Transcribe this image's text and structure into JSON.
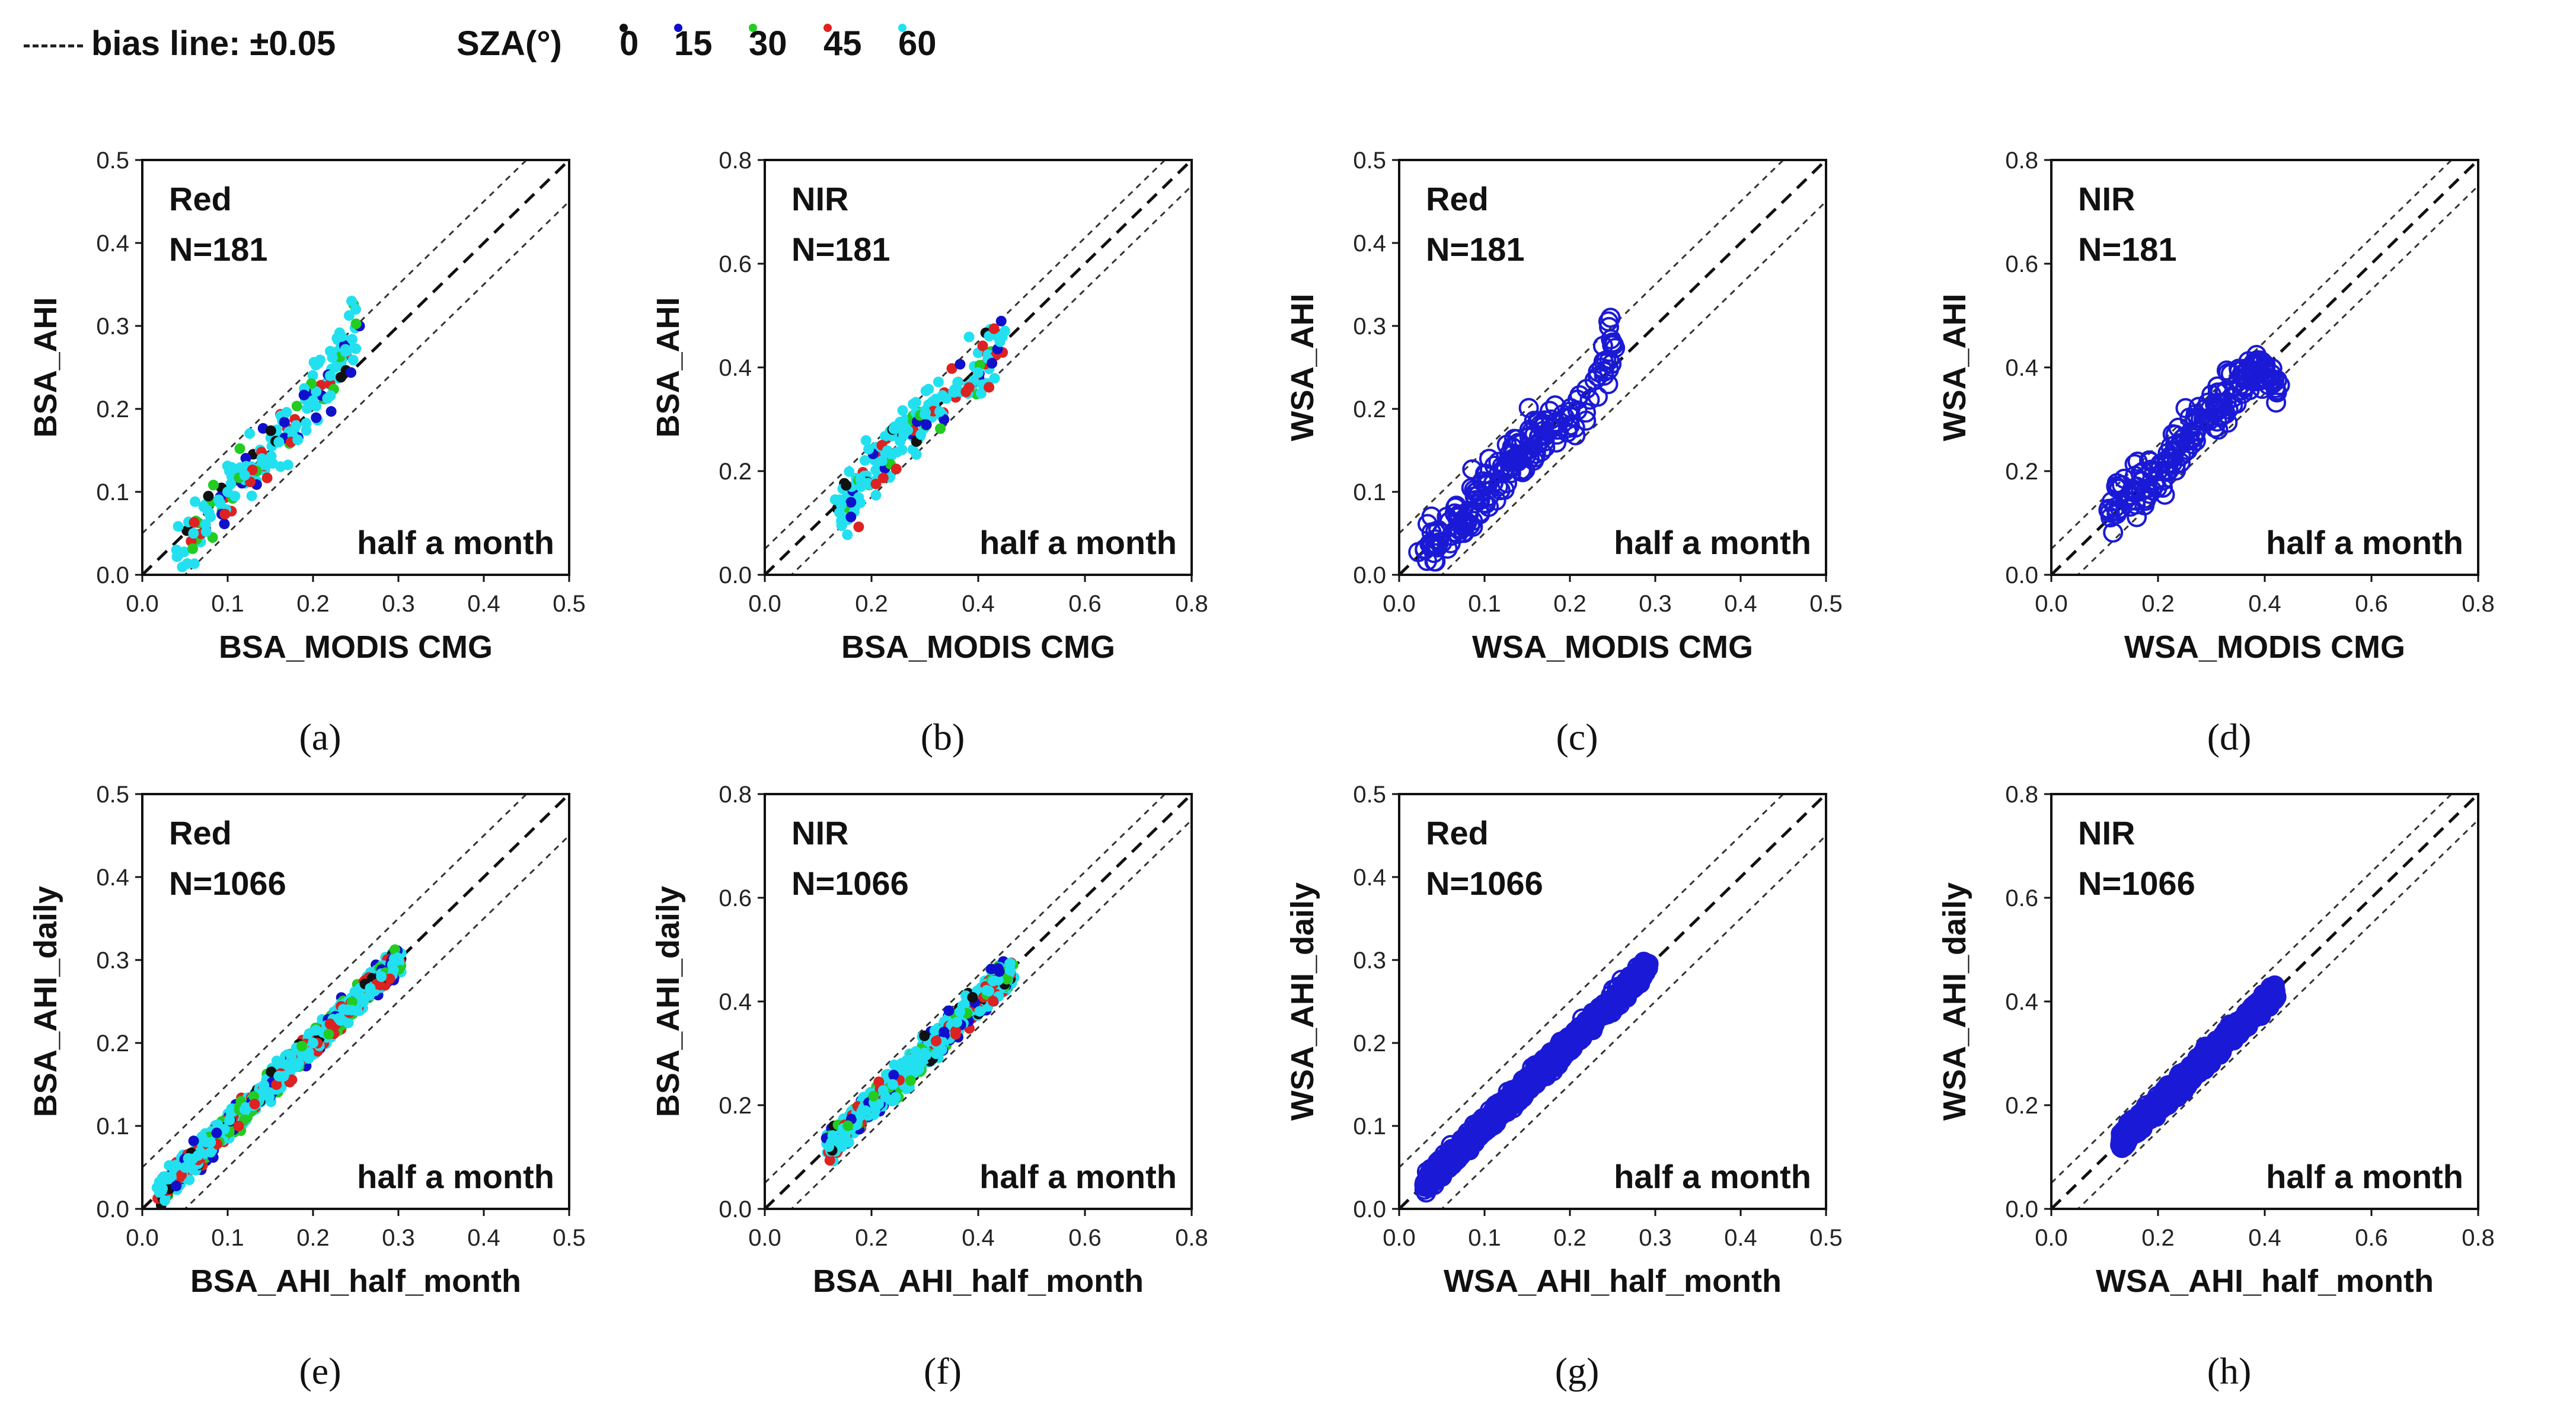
{
  "legend": {
    "bias_label": "bias line: ±0.05",
    "sza_title": "SZA(°)",
    "sza_items": [
      {
        "label": "0",
        "color": "#111111"
      },
      {
        "label": "15",
        "color": "#1010cc"
      },
      {
        "label": "30",
        "color": "#22cc22"
      },
      {
        "label": "45",
        "color": "#dd2222"
      },
      {
        "label": "60",
        "color": "#22e0f0"
      }
    ]
  },
  "chart_data": [
    {
      "type": "scatter",
      "panel_label": "(a)",
      "band": "Red",
      "n_label": "N=181",
      "note": "half a month",
      "xlabel": "BSA_MODIS CMG",
      "ylabel": "BSA_AHI",
      "xlim": [
        0,
        0.5
      ],
      "ylim": [
        0,
        0.5
      ],
      "xticks": [
        "0.0",
        "0.1",
        "0.2",
        "0.3",
        "0.4",
        "0.5"
      ],
      "yticks": [
        "0.0",
        "0.1",
        "0.2",
        "0.3",
        "0.4",
        "0.5"
      ],
      "marker": "filled",
      "bias": 0.05,
      "n": 181,
      "noise": 0.028,
      "points": [
        [
          0.04,
          0.03
        ],
        [
          0.06,
          0.05
        ],
        [
          0.08,
          0.07
        ],
        [
          0.1,
          0.1
        ],
        [
          0.12,
          0.12
        ],
        [
          0.14,
          0.14
        ],
        [
          0.16,
          0.16
        ],
        [
          0.18,
          0.18
        ],
        [
          0.2,
          0.21
        ],
        [
          0.22,
          0.24
        ],
        [
          0.24,
          0.27
        ],
        [
          0.25,
          0.32
        ]
      ]
    },
    {
      "type": "scatter",
      "panel_label": "(b)",
      "band": "NIR",
      "n_label": "N=181",
      "note": "half a month",
      "xlabel": "BSA_MODIS CMG",
      "ylabel": "BSA_AHI",
      "xlim": [
        0,
        0.8
      ],
      "ylim": [
        0,
        0.8
      ],
      "xticks": [
        "0.0",
        "0.2",
        "0.4",
        "0.6",
        "0.8"
      ],
      "yticks": [
        "0.0",
        "0.2",
        "0.4",
        "0.6",
        "0.8"
      ],
      "marker": "filled",
      "bias": 0.05,
      "n": 181,
      "noise": 0.04,
      "points": [
        [
          0.14,
          0.12
        ],
        [
          0.18,
          0.17
        ],
        [
          0.22,
          0.22
        ],
        [
          0.26,
          0.27
        ],
        [
          0.3,
          0.31
        ],
        [
          0.34,
          0.34
        ],
        [
          0.4,
          0.39
        ],
        [
          0.45,
          0.47
        ]
      ]
    },
    {
      "type": "scatter",
      "panel_label": "(c)",
      "band": "Red",
      "n_label": "N=181",
      "note": "half a month",
      "xlabel": "WSA_MODIS CMG",
      "ylabel": "WSA_AHI",
      "xlim": [
        0,
        0.5
      ],
      "ylim": [
        0,
        0.5
      ],
      "xticks": [
        "0.0",
        "0.1",
        "0.2",
        "0.3",
        "0.4",
        "0.5"
      ],
      "yticks": [
        "0.0",
        "0.1",
        "0.2",
        "0.3",
        "0.4",
        "0.5"
      ],
      "marker": "open",
      "bias": 0.05,
      "n": 181,
      "noise": 0.022,
      "points": [
        [
          0.03,
          0.03
        ],
        [
          0.05,
          0.05
        ],
        [
          0.07,
          0.07
        ],
        [
          0.09,
          0.09
        ],
        [
          0.11,
          0.11
        ],
        [
          0.13,
          0.13
        ],
        [
          0.15,
          0.15
        ],
        [
          0.17,
          0.18
        ],
        [
          0.2,
          0.18
        ],
        [
          0.24,
          0.24
        ],
        [
          0.25,
          0.28
        ]
      ]
    },
    {
      "type": "scatter",
      "panel_label": "(d)",
      "band": "NIR",
      "n_label": "N=181",
      "note": "half a month",
      "xlabel": "WSA_MODIS CMG",
      "ylabel": "WSA_AHI",
      "xlim": [
        0,
        0.8
      ],
      "ylim": [
        0,
        0.8
      ],
      "xticks": [
        "0.0",
        "0.2",
        "0.4",
        "0.6",
        "0.8"
      ],
      "yticks": [
        "0.0",
        "0.2",
        "0.4",
        "0.6",
        "0.8"
      ],
      "marker": "open",
      "bias": 0.05,
      "n": 181,
      "noise": 0.035,
      "points": [
        [
          0.12,
          0.13
        ],
        [
          0.16,
          0.17
        ],
        [
          0.2,
          0.2
        ],
        [
          0.24,
          0.25
        ],
        [
          0.28,
          0.3
        ],
        [
          0.32,
          0.33
        ],
        [
          0.36,
          0.38
        ],
        [
          0.4,
          0.4
        ],
        [
          0.42,
          0.36
        ]
      ]
    },
    {
      "type": "scatter",
      "panel_label": "(e)",
      "band": "Red",
      "n_label": "N=1066",
      "note": "half a month",
      "xlabel": "BSA_AHI_half_month",
      "ylabel": "BSA_AHI_daily",
      "xlim": [
        0,
        0.5
      ],
      "ylim": [
        0,
        0.5
      ],
      "xticks": [
        "0.0",
        "0.1",
        "0.2",
        "0.3",
        "0.4",
        "0.5"
      ],
      "yticks": [
        "0.0",
        "0.1",
        "0.2",
        "0.3",
        "0.4",
        "0.5"
      ],
      "marker": "filled",
      "bias": 0.05,
      "n": 1066,
      "noise": 0.012,
      "points": [
        [
          0.02,
          0.02
        ],
        [
          0.05,
          0.05
        ],
        [
          0.08,
          0.08
        ],
        [
          0.12,
          0.12
        ],
        [
          0.16,
          0.16
        ],
        [
          0.2,
          0.2
        ],
        [
          0.24,
          0.24
        ],
        [
          0.28,
          0.28
        ],
        [
          0.3,
          0.3
        ]
      ]
    },
    {
      "type": "scatter",
      "panel_label": "(f)",
      "band": "NIR",
      "n_label": "N=1066",
      "note": "half a month",
      "xlabel": "BSA_AHI_half_month",
      "ylabel": "BSA_AHI_daily",
      "xlim": [
        0,
        0.8
      ],
      "ylim": [
        0,
        0.8
      ],
      "xticks": [
        "0.0",
        "0.2",
        "0.4",
        "0.6",
        "0.8"
      ],
      "yticks": [
        "0.0",
        "0.2",
        "0.4",
        "0.6",
        "0.8"
      ],
      "marker": "filled",
      "bias": 0.05,
      "n": 1066,
      "noise": 0.02,
      "points": [
        [
          0.12,
          0.12
        ],
        [
          0.18,
          0.18
        ],
        [
          0.24,
          0.24
        ],
        [
          0.3,
          0.3
        ],
        [
          0.36,
          0.36
        ],
        [
          0.42,
          0.42
        ],
        [
          0.46,
          0.46
        ]
      ]
    },
    {
      "type": "scatter",
      "panel_label": "(g)",
      "band": "Red",
      "n_label": "N=1066",
      "note": "half a month",
      "xlabel": "WSA_AHI_half_month",
      "ylabel": "WSA_AHI_daily",
      "xlim": [
        0,
        0.5
      ],
      "ylim": [
        0,
        0.5
      ],
      "xticks": [
        "0.0",
        "0.1",
        "0.2",
        "0.3",
        "0.4",
        "0.5"
      ],
      "yticks": [
        "0.0",
        "0.1",
        "0.2",
        "0.3",
        "0.4",
        "0.5"
      ],
      "marker": "open",
      "bias": 0.05,
      "n": 1066,
      "noise": 0.008,
      "points": [
        [
          0.03,
          0.03
        ],
        [
          0.06,
          0.06
        ],
        [
          0.1,
          0.1
        ],
        [
          0.14,
          0.14
        ],
        [
          0.18,
          0.18
        ],
        [
          0.2,
          0.2
        ],
        [
          0.25,
          0.25
        ],
        [
          0.29,
          0.29
        ]
      ]
    },
    {
      "type": "scatter",
      "panel_label": "(h)",
      "band": "NIR",
      "n_label": "N=1066",
      "note": "half a month",
      "xlabel": "WSA_AHI_half_month",
      "ylabel": "WSA_AHI_daily",
      "xlim": [
        0,
        0.8
      ],
      "ylim": [
        0,
        0.8
      ],
      "xticks": [
        "0.0",
        "0.2",
        "0.4",
        "0.6",
        "0.8"
      ],
      "yticks": [
        "0.0",
        "0.2",
        "0.4",
        "0.6",
        "0.8"
      ],
      "marker": "open",
      "bias": 0.05,
      "n": 1066,
      "noise": 0.012,
      "points": [
        [
          0.13,
          0.13
        ],
        [
          0.18,
          0.18
        ],
        [
          0.24,
          0.24
        ],
        [
          0.3,
          0.3
        ],
        [
          0.36,
          0.36
        ],
        [
          0.42,
          0.42
        ]
      ]
    }
  ]
}
